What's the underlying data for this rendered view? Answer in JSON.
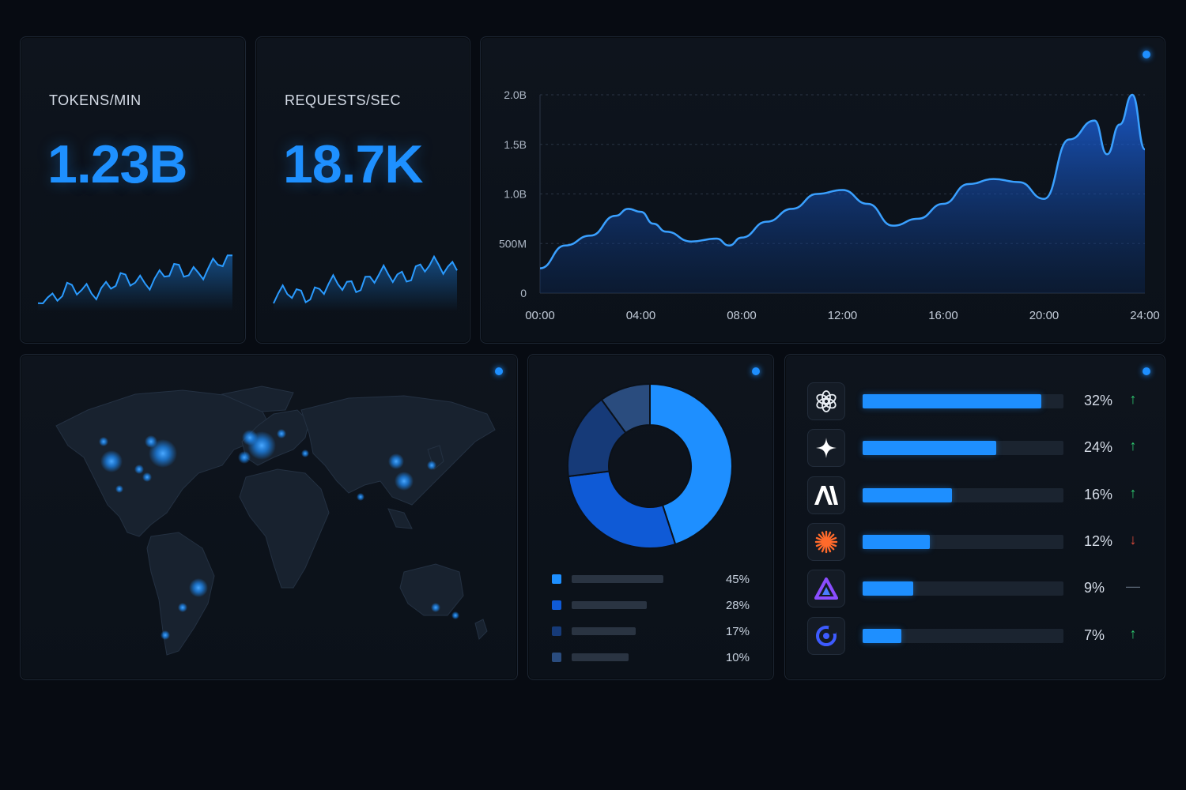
{
  "kpis": [
    {
      "label": "TOKENS/MIN",
      "value": "1.23B"
    },
    {
      "label": "REQUESTS/SEC",
      "value": "18.7K"
    }
  ],
  "colors": {
    "accent": "#1e8fff",
    "background": "#070b12",
    "panel": "#0e141d",
    "up": "#2ecc71",
    "down": "#e74c3c",
    "flat": "#5b6675"
  },
  "chart_data": [
    {
      "type": "area",
      "y_ticks": [
        "0",
        "500M",
        "1.0B",
        "1.5B",
        "2.0B"
      ],
      "x_ticks": [
        "00:00",
        "04:00",
        "08:00",
        "12:00",
        "16:00",
        "20:00",
        "24:00"
      ],
      "ylim": [
        0,
        2000000000
      ],
      "xlim": [
        0,
        24
      ],
      "grid": "horizontal dashed",
      "x": [
        0,
        1,
        2,
        3,
        3.5,
        4,
        4.5,
        5,
        6,
        7,
        7.5,
        8,
        9,
        10,
        11,
        12,
        13,
        14,
        15,
        16,
        17,
        18,
        19,
        20,
        21,
        22,
        22.5,
        23,
        23.5,
        24
      ],
      "values": [
        250000000,
        480000000,
        580000000,
        780000000,
        850000000,
        820000000,
        700000000,
        620000000,
        520000000,
        550000000,
        480000000,
        560000000,
        720000000,
        850000000,
        1000000000,
        1040000000,
        900000000,
        680000000,
        750000000,
        900000000,
        1100000000,
        1150000000,
        1120000000,
        950000000,
        1550000000,
        1740000000,
        1400000000,
        1700000000,
        2000000000,
        1450000000
      ]
    },
    {
      "type": "pie",
      "values": [
        45,
        28,
        17,
        10
      ],
      "labels": [
        "45%",
        "28%",
        "17%",
        "10%"
      ],
      "colors": [
        "#1e8fff",
        "#0f5ad6",
        "#163a78",
        "#2a4c7e"
      ]
    },
    {
      "type": "bar",
      "orientation": "horizontal",
      "values": [
        32,
        24,
        16,
        12,
        9,
        7
      ],
      "labels": [
        "32%",
        "24%",
        "16%",
        "12%",
        "9%",
        "7%"
      ],
      "xlim": [
        0,
        36
      ]
    }
  ],
  "models": [
    {
      "icon": "openai-icon",
      "pct": "32%",
      "value": 32,
      "trend": "↑",
      "trend_state": "up"
    },
    {
      "icon": "sparkle-icon",
      "pct": "24%",
      "value": 24,
      "trend": "↑",
      "trend_state": "up"
    },
    {
      "icon": "anthropic-icon",
      "pct": "16%",
      "value": 16,
      "trend": "↑",
      "trend_state": "up"
    },
    {
      "icon": "starburst-icon",
      "pct": "12%",
      "value": 12,
      "trend": "↓",
      "trend_state": "down"
    },
    {
      "icon": "triangle-logo-icon",
      "pct": "9%",
      "value": 9,
      "trend": "—",
      "trend_state": "flat"
    },
    {
      "icon": "ring-logo-icon",
      "pct": "7%",
      "value": 7,
      "trend": "↑",
      "trend_state": "up"
    }
  ],
  "map": {
    "icon": "world-map-icon"
  }
}
